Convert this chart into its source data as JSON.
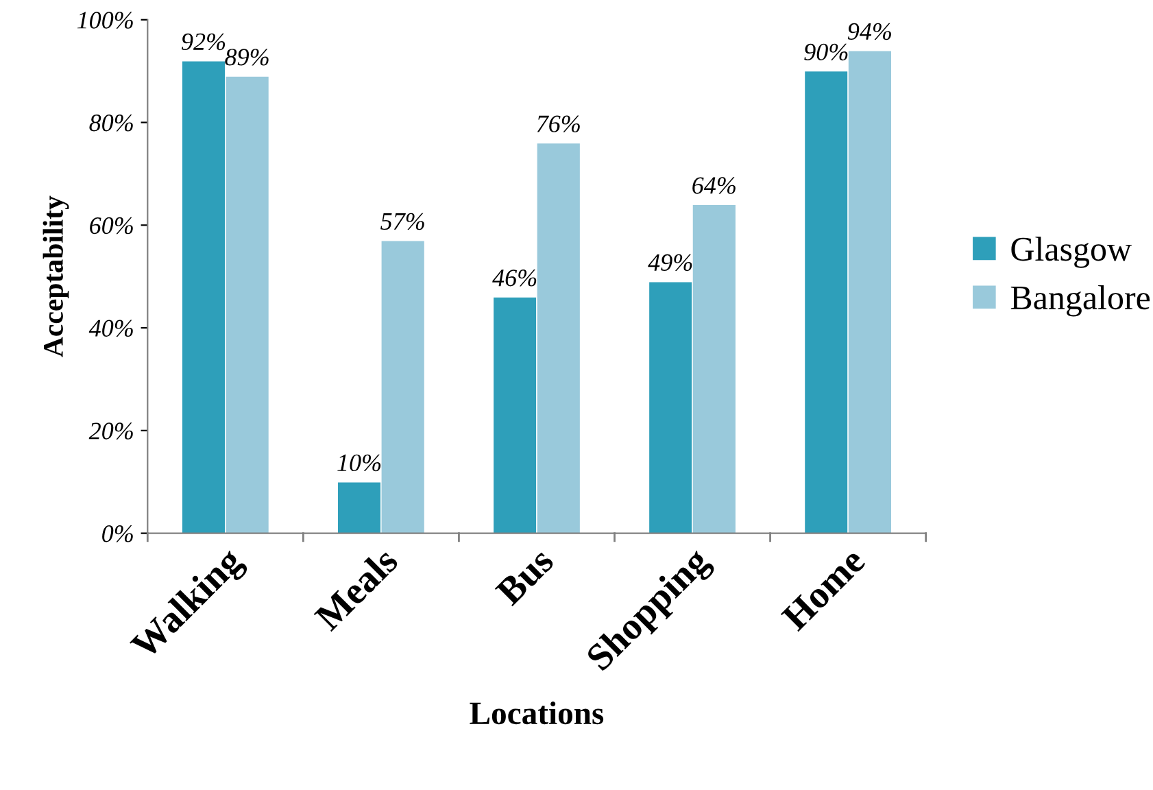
{
  "chart_data": {
    "type": "bar",
    "xlabel": "Locations",
    "ylabel": "Acceptability",
    "categories": [
      "Walking",
      "Meals",
      "Bus",
      "Shopping",
      "Home"
    ],
    "series": [
      {
        "name": "Glasgow",
        "color": "#2e9fba",
        "values": [
          92,
          10,
          46,
          49,
          90
        ],
        "value_labels": [
          "92%",
          "10%",
          "46%",
          "49%",
          "90%"
        ]
      },
      {
        "name": "Bangalore",
        "color": "#99c9db",
        "values": [
          89,
          57,
          76,
          64,
          94
        ],
        "value_labels": [
          "89%",
          "57%",
          "76%",
          "64%",
          "94%"
        ]
      }
    ],
    "ylim": [
      0,
      100
    ],
    "yticks": [
      {
        "value": 0,
        "label": "0%"
      },
      {
        "value": 20,
        "label": "20%"
      },
      {
        "value": 40,
        "label": "40%"
      },
      {
        "value": 60,
        "label": "60%"
      },
      {
        "value": 80,
        "label": "80%"
      },
      {
        "value": 100,
        "label": "100%"
      }
    ],
    "grid": false,
    "legend": "right"
  }
}
